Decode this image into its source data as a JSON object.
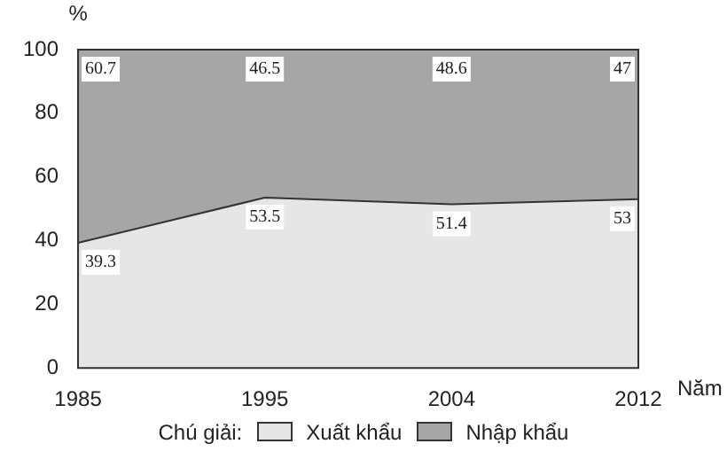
{
  "chart_data": {
    "type": "area",
    "stacked": true,
    "xlabel": "Năm",
    "ylabel": "%",
    "legend_title": "Chú giải:",
    "legend": "bottom",
    "data_labels": true,
    "grid": false,
    "categories": [
      "1985",
      "1995",
      "2004",
      "2012"
    ],
    "series": [
      {
        "name": "Xuất khẩu",
        "color": "#e6e6e6",
        "values": [
          39.3,
          53.5,
          51.4,
          53
        ]
      },
      {
        "name": "Nhập khẩu",
        "color": "#a6a6a6",
        "values": [
          60.7,
          46.5,
          48.6,
          47
        ]
      }
    ],
    "ylim": [
      0,
      100
    ],
    "yticks": [
      0,
      20,
      40,
      60,
      80,
      100
    ]
  }
}
